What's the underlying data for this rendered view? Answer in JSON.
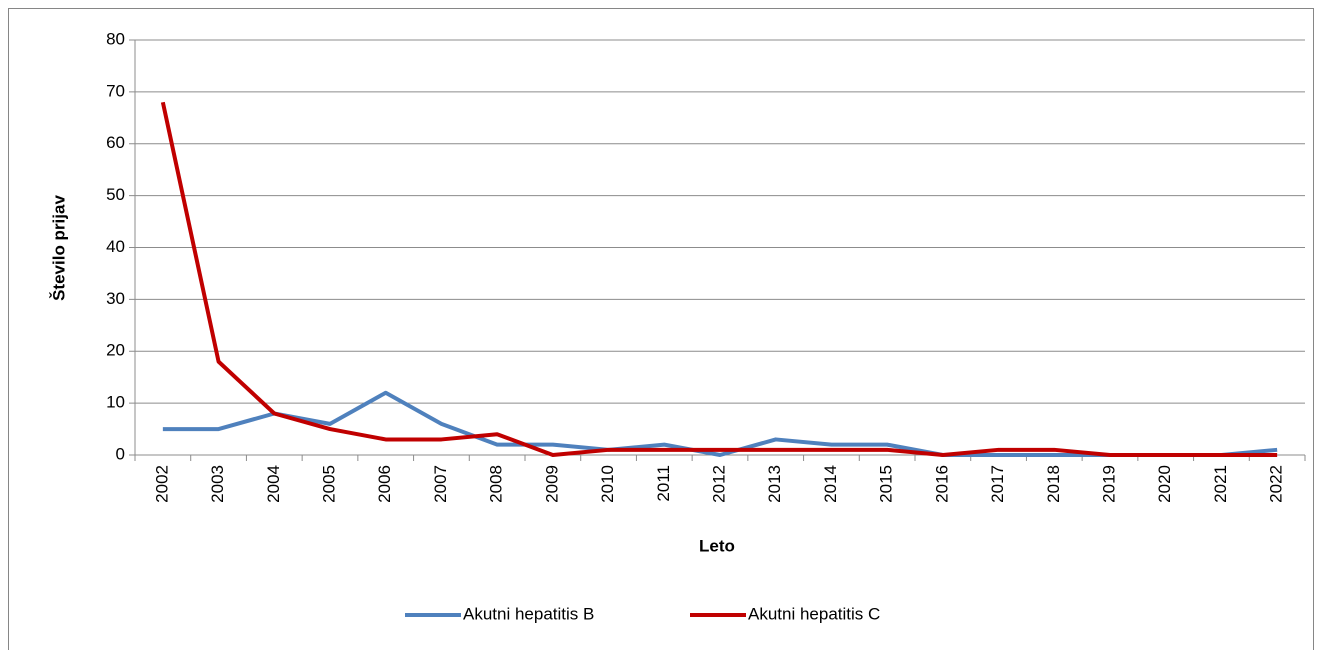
{
  "chart_data": {
    "type": "line",
    "categories": [
      "2002",
      "2003",
      "2004",
      "2005",
      "2006",
      "2007",
      "2008",
      "2009",
      "2010",
      "2011",
      "2012",
      "2013",
      "2014",
      "2015",
      "2016",
      "2017",
      "2018",
      "2019",
      "2020",
      "2021",
      "2022"
    ],
    "series": [
      {
        "name": "Akutni hepatitis B",
        "color": "#4f81bd",
        "values": [
          5,
          5,
          8,
          6,
          12,
          6,
          2,
          2,
          1,
          2,
          0,
          3,
          2,
          2,
          0,
          0,
          0,
          0,
          0,
          0,
          1
        ]
      },
      {
        "name": "Akutni hepatitis C",
        "color": "#c00000",
        "values": [
          68,
          18,
          8,
          5,
          3,
          3,
          4,
          0,
          1,
          1,
          1,
          1,
          1,
          1,
          0,
          1,
          1,
          0,
          0,
          0,
          0
        ]
      }
    ],
    "x_label": "Leto",
    "y_label": "Število prijav",
    "ylim": [
      0,
      80
    ],
    "yticks": [
      0,
      10,
      20,
      30,
      40,
      50,
      60,
      70,
      80
    ],
    "grid": true,
    "legend": "bottom"
  }
}
